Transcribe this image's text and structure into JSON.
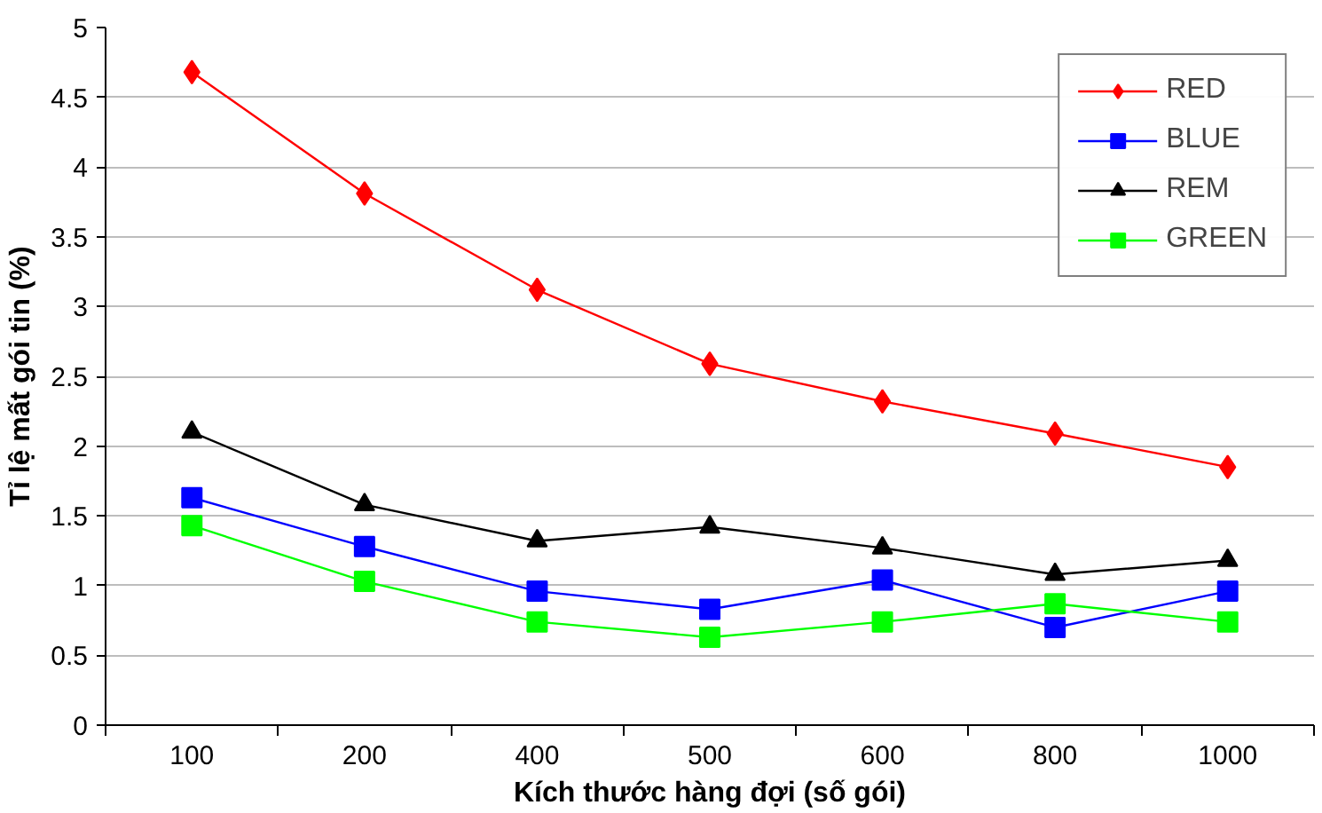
{
  "chart_data": {
    "type": "line",
    "xlabel": "Kích thước hàng đợi (số gói)",
    "ylabel": "Tỉ lệ mất gói tin (%)",
    "categories": [
      "100",
      "200",
      "400",
      "500",
      "600",
      "800",
      "1000"
    ],
    "series": [
      {
        "name": "RED",
        "color": "#ff0000",
        "marker": "diamond",
        "values": [
          4.68,
          3.81,
          3.12,
          2.59,
          2.32,
          2.09,
          1.85
        ]
      },
      {
        "name": "BLUE",
        "color": "#0000ff",
        "marker": "square",
        "values": [
          1.63,
          1.28,
          0.96,
          0.83,
          1.04,
          0.7,
          0.96
        ]
      },
      {
        "name": "REM",
        "color": "#000000",
        "marker": "triangle",
        "values": [
          2.1,
          1.58,
          1.32,
          1.42,
          1.27,
          1.08,
          1.18
        ]
      },
      {
        "name": "GREEN",
        "color": "#00ff00",
        "marker": "square",
        "values": [
          1.43,
          1.03,
          0.74,
          0.63,
          0.74,
          0.87,
          0.74
        ]
      }
    ],
    "ylim": [
      0,
      5
    ],
    "yticks": [
      0,
      0.5,
      1,
      1.5,
      2,
      2.5,
      3,
      3.5,
      4,
      4.5,
      5
    ],
    "grid": "y",
    "legend": "top right",
    "line_style": "solid"
  }
}
